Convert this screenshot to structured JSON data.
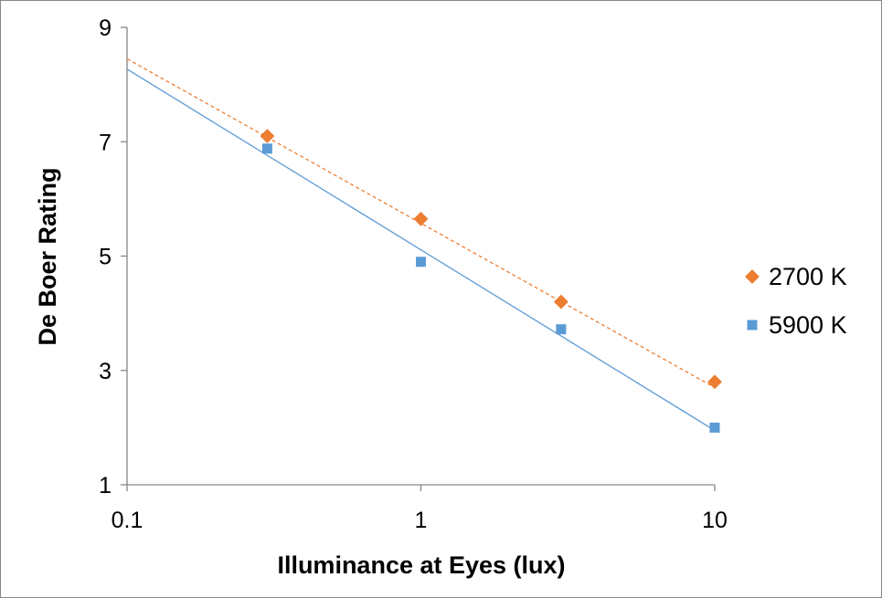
{
  "chart_data": {
    "type": "scatter",
    "xlabel": "Illuminance at Eyes (lux)",
    "ylabel": "De Boer Rating",
    "xscale": "log",
    "xlim": [
      0.1,
      10
    ],
    "ylim": [
      1,
      9
    ],
    "xticks": [
      0.1,
      1,
      10
    ],
    "xtick_labels": [
      "0.1",
      "1",
      "10"
    ],
    "yticks": [
      1,
      3,
      5,
      7,
      9
    ],
    "ytick_labels": [
      "1",
      "3",
      "5",
      "7",
      "9"
    ],
    "grid": false,
    "legend_position": "right",
    "series": [
      {
        "name": "2700 K",
        "color": "#ED7D31",
        "marker": "diamond",
        "x": [
          0.3,
          1,
          3,
          10
        ],
        "y": [
          7.1,
          5.65,
          4.2,
          2.8
        ],
        "trendline": {
          "type": "log",
          "style": "dashed",
          "y_at_xmin": 8.45,
          "y_at_xmax": 2.7
        }
      },
      {
        "name": "5900 K",
        "color": "#5B9BD5",
        "marker": "square",
        "x": [
          0.3,
          1,
          3,
          10
        ],
        "y": [
          6.88,
          4.9,
          3.72,
          2.0
        ],
        "trendline": {
          "type": "log",
          "style": "solid",
          "y_at_xmin": 8.27,
          "y_at_xmax": 1.95
        }
      }
    ]
  }
}
